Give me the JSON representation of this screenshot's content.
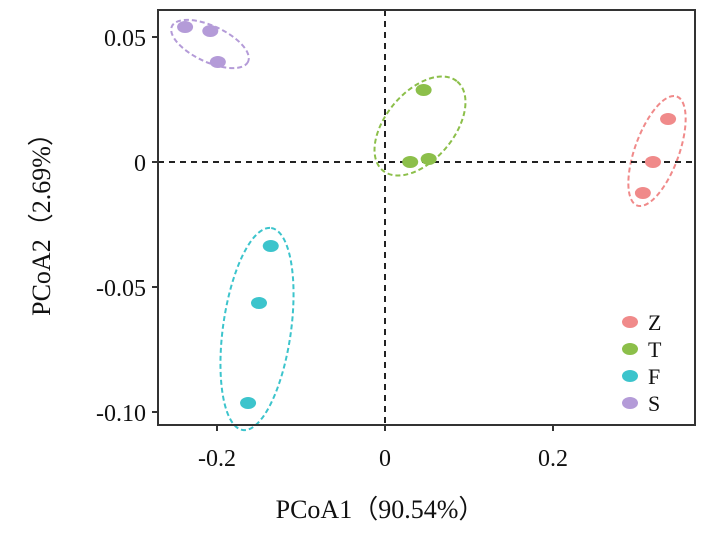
{
  "chart_data": {
    "type": "scatter",
    "title": "",
    "xlabel": "PCoA1（90.54%）",
    "ylabel": "PCoA2（2.69%）",
    "xlim": [
      -0.27,
      0.375
    ],
    "ylim": [
      -0.105,
      0.06
    ],
    "xticks": [
      -0.2,
      0,
      0.2
    ],
    "xtick_labels": [
      "-0.2",
      "0",
      "0.2"
    ],
    "yticks": [
      0.05,
      0,
      -0.05,
      -0.1
    ],
    "ytick_labels": [
      "0.05",
      "0",
      "-0.05",
      "-0.10"
    ],
    "grid": false,
    "reference_lines": {
      "x": 0,
      "y": 0,
      "style": "dashed"
    },
    "legend_position": "bottom-right",
    "series": [
      {
        "name": "Z",
        "color": "#f08a8a",
        "points": [
          [
            0.337,
            0.0172
          ],
          [
            0.319,
            0.0
          ],
          [
            0.307,
            -0.0124
          ]
        ]
      },
      {
        "name": "T",
        "color": "#8cbf4a",
        "points": [
          [
            0.046,
            0.0288
          ],
          [
            0.03,
            0.0
          ],
          [
            0.052,
            0.0012
          ]
        ]
      },
      {
        "name": "F",
        "color": "#3cc4cc",
        "points": [
          [
            -0.136,
            -0.0336
          ],
          [
            -0.15,
            -0.0564
          ],
          [
            -0.163,
            -0.0964
          ]
        ]
      },
      {
        "name": "S",
        "color": "#b49bd8",
        "points": [
          [
            -0.238,
            0.054
          ],
          [
            -0.208,
            0.0524
          ],
          [
            -0.199,
            0.04
          ]
        ]
      }
    ]
  }
}
